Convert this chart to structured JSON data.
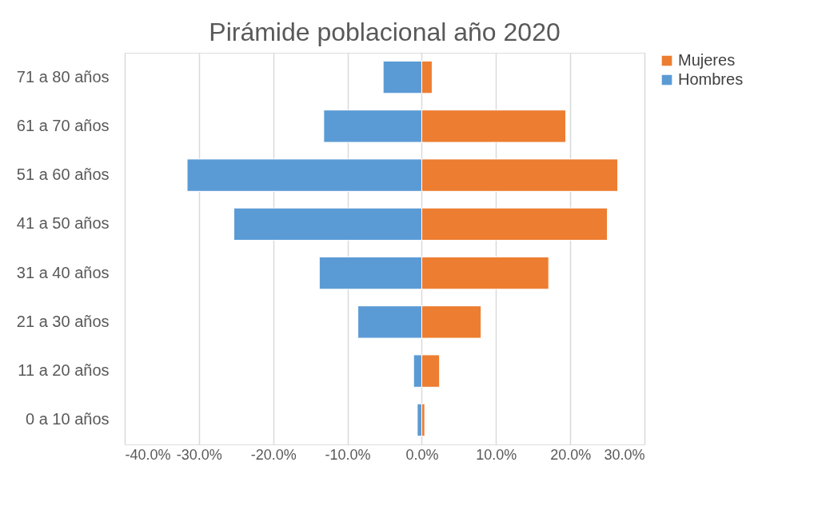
{
  "chart_data": {
    "type": "bar",
    "title": "Pirámide poblacional año 2020",
    "orientation": "horizontal",
    "stacked": true,
    "categories": [
      "71 a 80 años",
      "61 a 70 años",
      "51 a 60 años",
      "41 a 50 años",
      "31 a 40 años",
      "21 a 30 años",
      "11 a 20 años",
      "0 a 10 años"
    ],
    "series": [
      {
        "name": "Mujeres",
        "color": "#ed7d31",
        "values": [
          1.4,
          19.4,
          26.4,
          25.0,
          17.1,
          8.0,
          2.4,
          0.4
        ]
      },
      {
        "name": "Hombres",
        "color": "#5b9bd5",
        "values": [
          -5.2,
          -13.2,
          -31.6,
          -25.3,
          -13.8,
          -8.6,
          -1.1,
          -0.6
        ]
      }
    ],
    "xlim": [
      -40,
      30
    ],
    "xticks": [
      {
        "value": -40,
        "label": "-40.0%"
      },
      {
        "value": -30,
        "label": "-30.0%"
      },
      {
        "value": -20,
        "label": "-20.0%"
      },
      {
        "value": -10,
        "label": "-10.0%"
      },
      {
        "value": 0,
        "label": "0.0%"
      },
      {
        "value": 10,
        "label": "10.0%"
      },
      {
        "value": 20,
        "label": "20.0%"
      },
      {
        "value": 30,
        "label": "30.0%"
      }
    ],
    "grid": "x",
    "legend": "right"
  }
}
